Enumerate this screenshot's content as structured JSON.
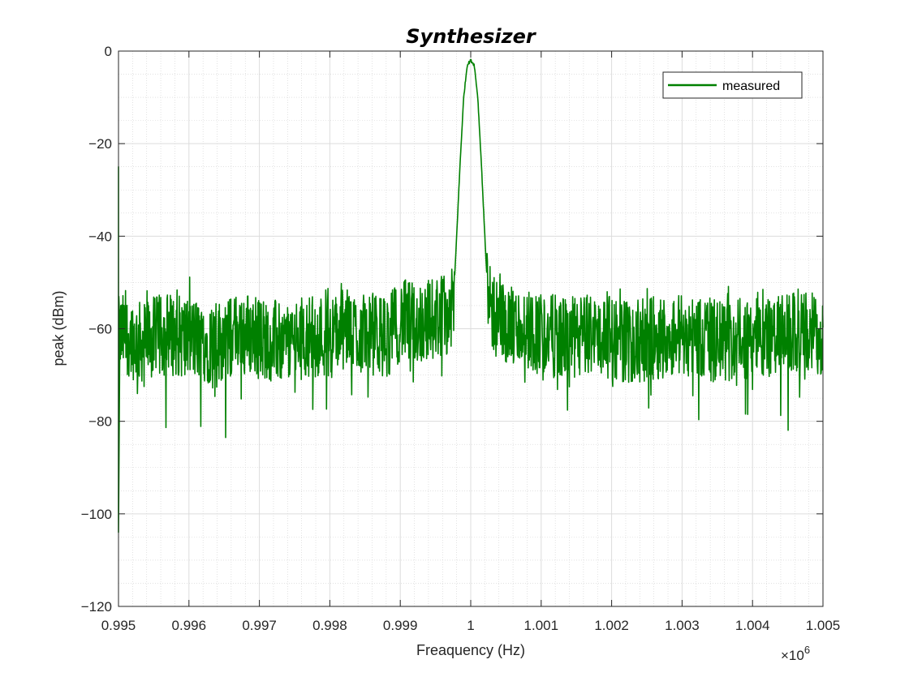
{
  "chart_data": {
    "type": "line",
    "title": "Synthesizer",
    "xlabel": "Freaquency (Hz)",
    "ylabel": "peak (dBm)",
    "xlim": [
      995000,
      1005000
    ],
    "ylim": [
      -120,
      0
    ],
    "x_ticks": [
      0.995,
      0.996,
      0.997,
      0.998,
      0.999,
      1,
      1.001,
      1.002,
      1.003,
      1.004,
      1.005
    ],
    "x_tick_labels": [
      "0.995",
      "0.996",
      "0.997",
      "0.998",
      "0.999",
      "1",
      "1.001",
      "1.002",
      "1.003",
      "1.004",
      "1.005"
    ],
    "x_exponent_base": "×10",
    "x_exponent_power": "6",
    "y_ticks": [
      0,
      -20,
      -40,
      -60,
      -80,
      -100,
      -120
    ],
    "y_tick_labels": [
      "0",
      "−20",
      "−40",
      "−60",
      "−80",
      "−100",
      "−120"
    ],
    "grid": true,
    "minor_grid": true,
    "legend_position": "top-right",
    "series": [
      {
        "name": "measured",
        "color": "#008000",
        "x": [
          995000,
          995100,
          995300,
          995500,
          995700,
          996000,
          996300,
          996600,
          996700,
          997000,
          997300,
          997600,
          997800,
          998000,
          998200,
          998400,
          998600,
          998800,
          999000,
          999200,
          999400,
          999600,
          999750,
          999800,
          999850,
          999900,
          999950,
          1000000,
          1000050,
          1000100,
          1000150,
          1000200,
          1000250,
          1000400,
          1000600,
          1000800,
          1001000,
          1001300,
          1001500,
          1001700,
          1002000,
          1002300,
          1002600,
          1003000,
          1003300,
          1003600,
          1004000,
          1004300,
          1004600,
          1005000
        ],
        "y": [
          -62,
          -61,
          -63,
          -62,
          -61,
          -62,
          -63,
          -62,
          -60,
          -62,
          -63,
          -62,
          -61,
          -62,
          -60,
          -61,
          -61,
          -62,
          -58,
          -59,
          -58,
          -57,
          -56,
          -40,
          -24,
          -10,
          -3,
          -2,
          -3,
          -10,
          -24,
          -40,
          -55,
          -58,
          -60,
          -60,
          -61,
          -62,
          -62,
          -61,
          -62,
          -63,
          -62,
          -61,
          -62,
          -63,
          -62,
          -62,
          -61,
          -61
        ],
        "noise_spread_db": 9
      }
    ],
    "annotations": [
      {
        "x": 995000,
        "y": -25
      },
      {
        "x": 995000,
        "y": -104
      }
    ]
  }
}
